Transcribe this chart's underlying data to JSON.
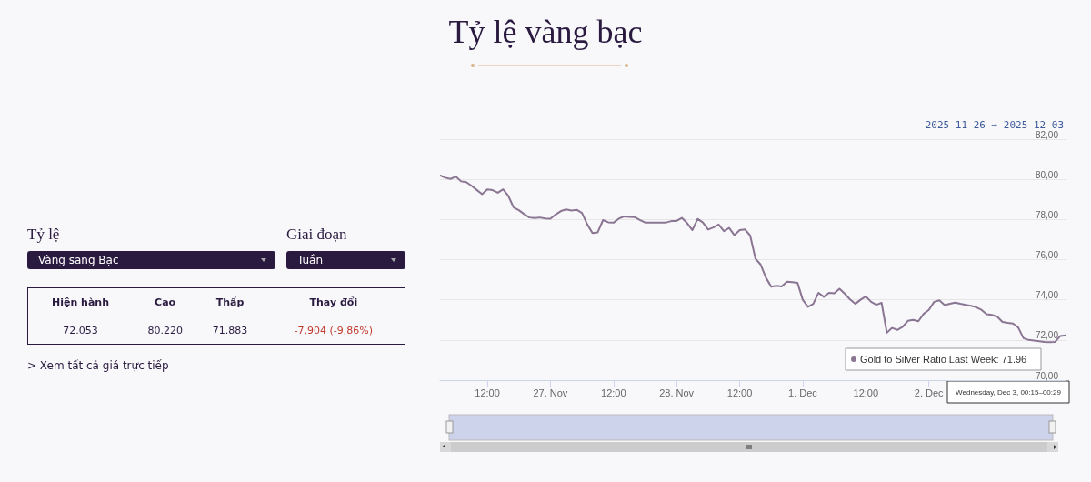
{
  "chart_data": [
    {
      "type": "line",
      "title": "Tỷ lệ vàng bạc",
      "subtitle": "2025-11-26 → 2025-12-03",
      "categories": [
        null,
        null,
        null,
        null,
        null,
        null,
        null,
        null,
        null,
        "12:00",
        null,
        null,
        null,
        null,
        null,
        null,
        null,
        null,
        null,
        null,
        null,
        "27. Nov",
        null,
        null,
        null,
        null,
        null,
        null,
        null,
        null,
        null,
        null,
        null,
        "12:00",
        null,
        null,
        null,
        null,
        null,
        null,
        null,
        null,
        null,
        null,
        null,
        "28. Nov",
        null,
        null,
        null,
        null,
        null,
        null,
        null,
        null,
        null,
        null,
        null,
        "12:00",
        null,
        null,
        null,
        null,
        null,
        null,
        null,
        null,
        null,
        null,
        null,
        "1. Dec",
        null,
        null,
        null,
        null,
        null,
        null,
        null,
        null,
        null,
        null,
        null,
        "12:00",
        null,
        null,
        null,
        null,
        null,
        null,
        null,
        null,
        null,
        null,
        null,
        "2. Dec",
        null,
        null,
        null,
        null,
        null,
        null,
        null,
        null,
        null,
        null,
        null,
        null,
        null,
        null,
        null,
        null,
        null,
        null,
        null,
        null,
        null,
        null,
        null,
        null,
        null,
        null
      ],
      "series": [
        {
          "color": "#8a7592",
          "values": [
            80.2,
            80.08,
            80.02,
            80.14,
            79.9,
            79.86,
            79.68,
            79.47,
            79.26,
            79.5,
            79.46,
            79.33,
            79.5,
            79.17,
            78.6,
            78.46,
            78.27,
            78.1,
            78.07,
            78.1,
            78.05,
            78.04,
            78.25,
            78.42,
            78.5,
            78.45,
            78.48,
            78.33,
            77.76,
            77.32,
            77.36,
            77.97,
            77.86,
            77.84,
            78.04,
            78.15,
            78.13,
            78.12,
            77.98,
            77.85,
            77.85,
            77.85,
            77.85,
            77.85,
            77.92,
            77.93,
            78.08,
            77.82,
            77.47,
            78.03,
            77.85,
            77.5,
            77.6,
            77.75,
            77.42,
            77.58,
            77.22,
            77.47,
            77.51,
            77.2,
            76.05,
            75.75,
            75.1,
            74.65,
            74.7,
            74.66,
            74.9,
            74.88,
            74.85,
            74.0,
            73.65,
            73.8,
            74.35,
            74.15,
            74.35,
            74.32,
            74.55,
            74.3,
            74.02,
            73.8,
            74.0,
            74.17,
            73.9,
            73.75,
            73.85,
            72.36,
            72.6,
            72.5,
            72.65,
            72.95,
            73.0,
            72.93,
            73.3,
            73.5,
            73.9,
            73.97,
            73.74,
            73.8,
            73.86,
            73.8,
            73.75,
            73.7,
            73.63,
            73.5,
            73.28,
            73.25,
            73.16,
            72.9,
            72.85,
            72.82,
            72.62,
            72.09,
            72.0,
            71.97,
            71.94,
            71.9,
            71.89,
            71.9,
            72.2,
            72.23
          ]
        }
      ],
      "ylim": [
        70,
        82
      ],
      "yticks": [
        {
          "value": 70,
          "label": "70,00"
        },
        {
          "value": 72,
          "label": "72,00"
        },
        {
          "value": 74,
          "label": "74,00"
        },
        {
          "value": 76,
          "label": "76,00"
        },
        {
          "value": 78,
          "label": "78,00"
        },
        {
          "value": 80,
          "label": "80,00"
        },
        {
          "value": 82,
          "label": "82,00"
        }
      ],
      "grid": "y",
      "marker": "none",
      "line_style": "solid",
      "annotations": [
        "Gold to Silver Ratio Last Week: 71.96",
        "Wednesday, Dec 3, 00:15–00:29"
      ]
    },
    {
      "type": "other",
      "annotations": [
        "Tỷ lệ",
        "Vàng sang Bạc",
        "Giai đoạn",
        "Tuần",
        "Hiện hành",
        "Cao",
        "Thấp",
        "Thay đổi",
        "72.053",
        "80.220",
        "71.883",
        "-7,904 (-9,86%)",
        "> Xem tất cả giá trực tiếp"
      ]
    }
  ]
}
